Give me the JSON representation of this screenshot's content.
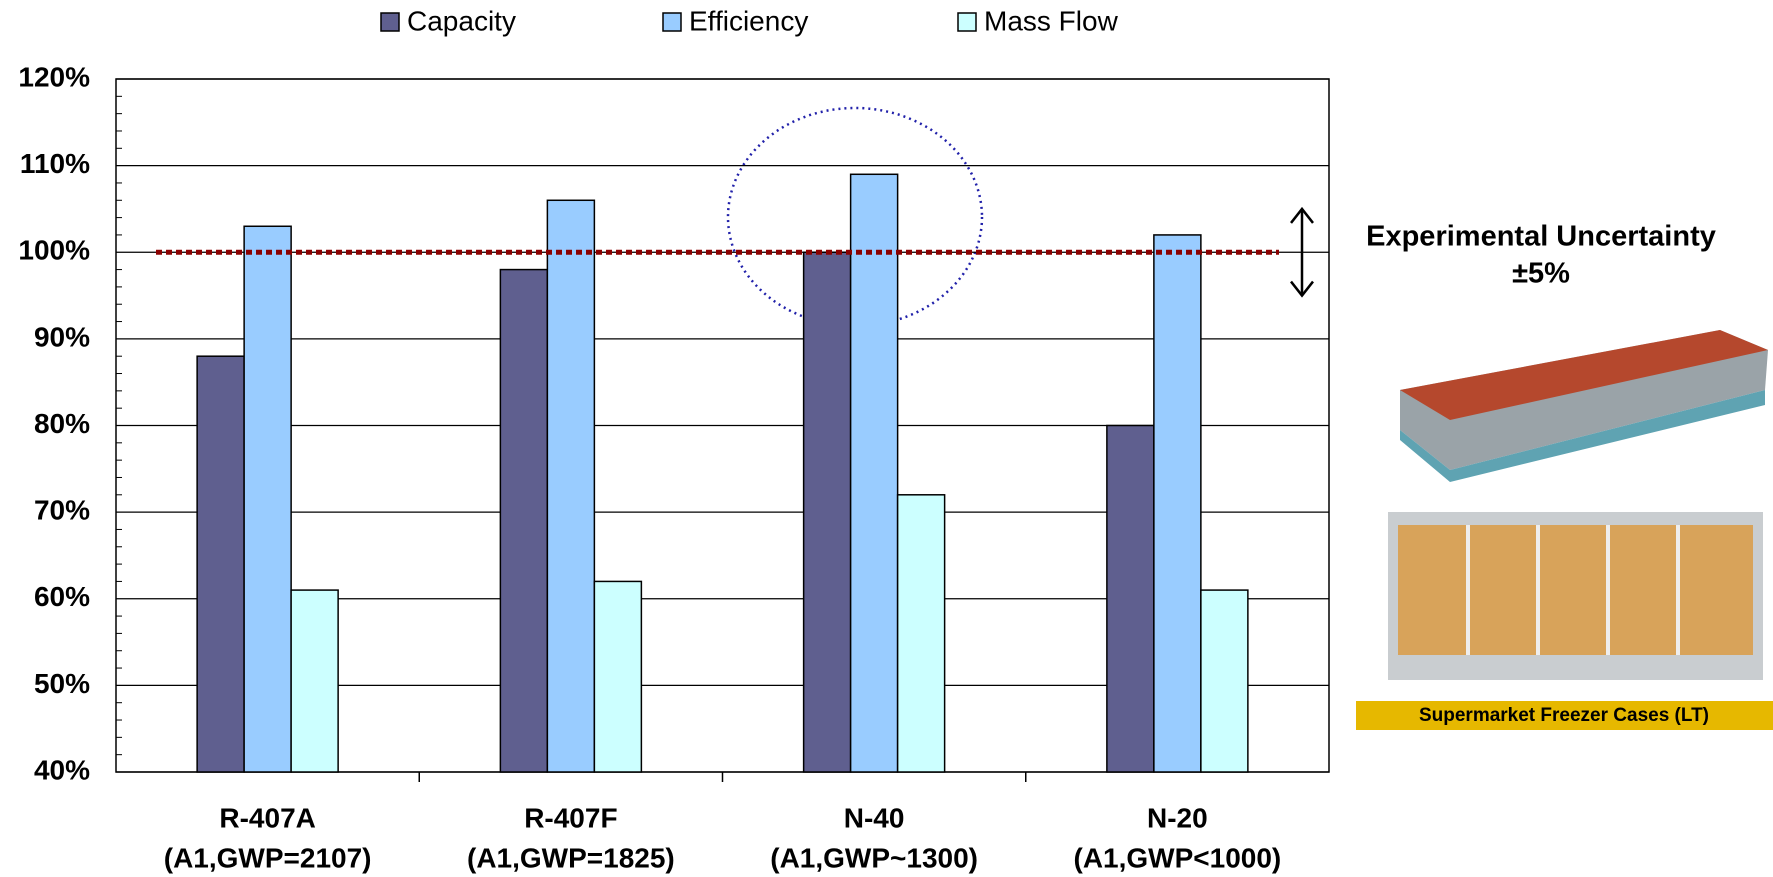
{
  "chart_data": {
    "type": "bar",
    "categories": [
      [
        "R-407A",
        "(A1,GWP=2107)"
      ],
      [
        "R-407F",
        "(A1,GWP=1825)"
      ],
      [
        "N-40",
        "(A1,GWP~1300)"
      ],
      [
        "N-20",
        "(A1,GWP<1000)"
      ]
    ],
    "series": [
      {
        "name": "Capacity",
        "color": "#5f5f8f",
        "values": [
          88,
          98,
          100,
          80
        ]
      },
      {
        "name": "Efficiency",
        "color": "#99ccff",
        "values": [
          103,
          106,
          109,
          102
        ]
      },
      {
        "name": "Mass Flow",
        "color": "#ccffff",
        "values": [
          61,
          62,
          72,
          61
        ]
      }
    ],
    "ylim": [
      40,
      120
    ],
    "yticks": [
      {
        "value": 40,
        "label": "40%"
      },
      {
        "value": 50,
        "label": "50%"
      },
      {
        "value": 60,
        "label": "60%"
      },
      {
        "value": 70,
        "label": "70%"
      },
      {
        "value": 80,
        "label": "80%"
      },
      {
        "value": 90,
        "label": "90%"
      },
      {
        "value": 100,
        "label": "100%"
      },
      {
        "value": 110,
        "label": "110%"
      },
      {
        "value": 120,
        "label": "120%"
      }
    ],
    "grid": true,
    "legend": "top",
    "reference_line": {
      "value": 100,
      "color": "#8b0000"
    },
    "uncertainty": {
      "value": 5,
      "label": "±5%"
    },
    "annotation": "Experimental Uncertainty",
    "caption": "Supermarket Freezer Cases (LT)"
  }
}
